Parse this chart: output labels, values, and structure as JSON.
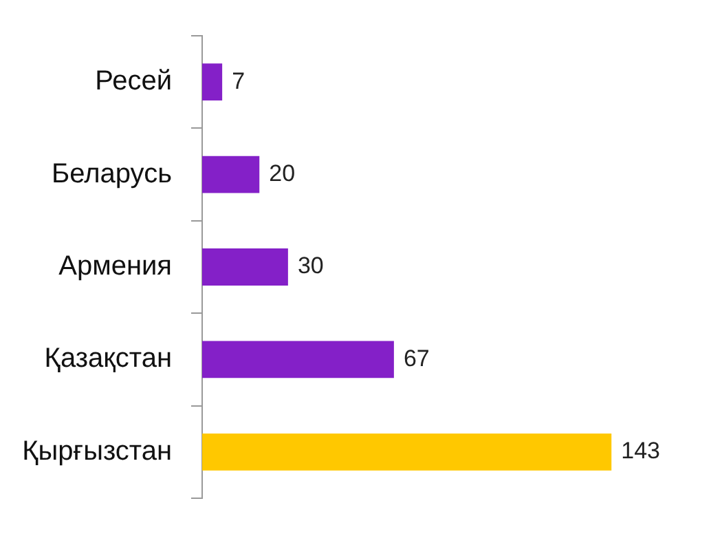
{
  "chart_data": {
    "type": "bar",
    "orientation": "horizontal",
    "categories": [
      "Ресей",
      "Беларусь",
      "Армения",
      "Қазақстан",
      "Қырғызстан"
    ],
    "values": [
      7,
      20,
      30,
      67,
      143
    ],
    "colors": [
      "#8420c8",
      "#8420c8",
      "#8420c8",
      "#8420c8",
      "#ffc800"
    ],
    "data_labels": true,
    "legend": false
  }
}
